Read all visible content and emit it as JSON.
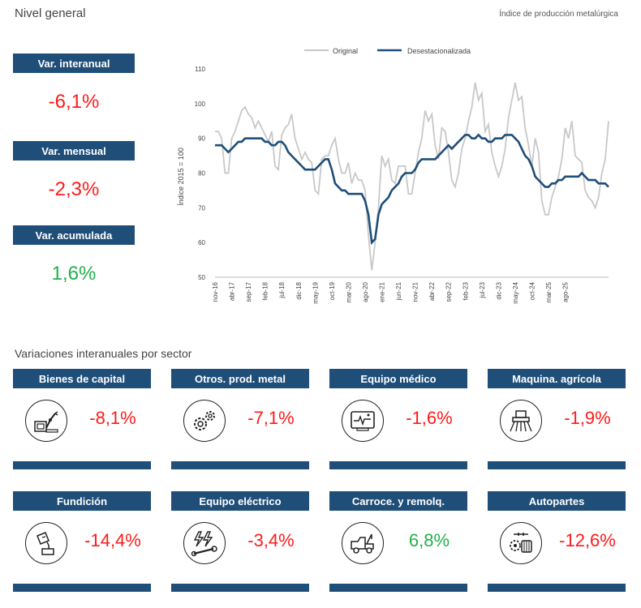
{
  "header": {
    "title": "Nivel general",
    "subtitle": "Índice de producción metalúrgica"
  },
  "kpis": [
    {
      "label": "Var. interanual",
      "value": "-6,1%",
      "sign": "neg"
    },
    {
      "label": "Var. mensual",
      "value": "-2,3%",
      "sign": "neg"
    },
    {
      "label": "Var. acumulada",
      "value": "1,6%",
      "sign": "pos"
    }
  ],
  "sectors": {
    "title": "Variaciones interanuales por sector",
    "items": [
      {
        "name": "Bienes de capital",
        "value": "-8,1%",
        "sign": "neg",
        "icon": "robot-arm-icon"
      },
      {
        "name": "Otros. prod. metal",
        "value": "-7,1%",
        "sign": "neg",
        "icon": "gears-icon"
      },
      {
        "name": "Equipo médico",
        "value": "-1,6%",
        "sign": "neg",
        "icon": "heart-monitor-icon"
      },
      {
        "name": "Maquina. agrícola",
        "value": "-1,9%",
        "sign": "neg",
        "icon": "tractor-icon"
      },
      {
        "name": "Fundición",
        "value": "-14,4%",
        "sign": "neg",
        "icon": "crucible-icon"
      },
      {
        "name": "Equipo eléctrico",
        "value": "-3,4%",
        "sign": "neg",
        "icon": "lightning-wrench-icon"
      },
      {
        "name": "Carroce. y remolq.",
        "value": "6,8%",
        "sign": "pos",
        "icon": "tow-truck-icon"
      },
      {
        "name": "Autopartes",
        "value": "-12,6%",
        "sign": "neg",
        "icon": "engine-parts-icon"
      }
    ]
  },
  "colors": {
    "accent": "#1f4e79",
    "negative": "#ff1a1a",
    "positive": "#22b04b",
    "original_series": "#c8c8c8",
    "sa_series": "#1f4e79"
  },
  "chart_data": {
    "type": "line",
    "title": "",
    "xlabel": "",
    "ylabel": "Índice 2015 = 100",
    "ylim": [
      50,
      110
    ],
    "yticks": [
      50,
      60,
      70,
      80,
      90,
      100,
      110
    ],
    "x_tick_labels": [
      "nov-16",
      "abr-17",
      "sep-17",
      "feb-18",
      "jul-18",
      "dic-18",
      "may-19",
      "oct-19",
      "mar-20",
      "ago-20",
      "ene-21",
      "jun-21",
      "nov-21",
      "abr-22",
      "sep-22",
      "feb-23",
      "jul-23",
      "dic-23",
      "may-24",
      "oct-24",
      "mar-25",
      "ago-25"
    ],
    "x_start": "nov-16",
    "x_end": "ago-25",
    "legend_position": "top",
    "series": [
      {
        "name": "Original",
        "values": [
          92,
          92,
          90,
          80,
          80,
          90,
          92,
          95,
          98,
          99,
          97,
          96,
          93,
          95,
          93,
          91,
          89,
          92,
          82,
          81,
          91,
          93,
          94,
          97,
          90,
          87,
          84,
          86,
          84,
          83,
          75,
          74,
          84,
          85,
          85,
          88,
          90,
          84,
          80,
          80,
          83,
          77,
          80,
          78,
          78,
          75,
          62,
          52,
          60,
          70,
          85,
          82,
          84,
          78,
          77,
          82,
          82,
          82,
          74,
          74,
          80,
          86,
          90,
          98,
          95,
          97,
          88,
          84,
          93,
          92,
          86,
          78,
          76,
          80,
          87,
          90,
          95,
          99,
          106,
          101,
          103,
          92,
          94,
          86,
          82,
          79,
          82,
          87,
          96,
          101,
          106,
          101,
          102,
          93,
          88,
          82,
          90,
          86,
          72,
          68,
          68,
          73,
          76,
          79,
          84,
          93,
          90,
          95,
          85,
          84,
          83,
          75,
          73,
          72,
          70,
          73,
          80,
          84,
          95
        ]
      },
      {
        "name": "Desestacionalizada",
        "values": [
          88,
          88,
          88,
          87,
          86,
          87,
          88,
          89,
          89,
          90,
          90,
          90,
          90,
          90,
          90,
          89,
          89,
          88,
          88,
          89,
          89,
          88,
          86,
          85,
          84,
          83,
          82,
          81,
          81,
          81,
          81,
          82,
          83,
          84,
          84,
          81,
          77,
          76,
          75,
          75,
          74,
          74,
          74,
          74,
          74,
          72,
          68,
          60,
          61,
          68,
          71,
          72,
          73,
          75,
          76,
          77,
          79,
          80,
          80,
          80,
          81,
          83,
          84,
          84,
          84,
          84,
          84,
          85,
          86,
          87,
          88,
          87,
          88,
          89,
          90,
          91,
          91,
          90,
          90,
          91,
          90,
          90,
          89,
          89,
          90,
          90,
          90,
          91,
          91,
          91,
          90,
          89,
          87,
          85,
          84,
          82,
          79,
          78,
          77,
          76,
          76,
          77,
          77,
          78,
          78,
          79,
          79,
          79,
          79,
          79,
          80,
          79,
          78,
          78,
          78,
          77,
          77,
          77,
          76
        ]
      }
    ]
  }
}
